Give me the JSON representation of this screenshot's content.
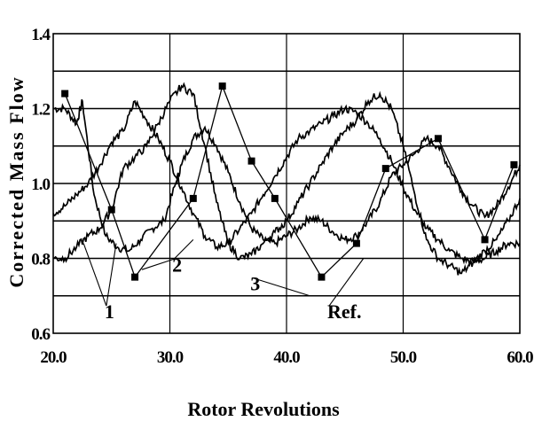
{
  "chart_data": {
    "type": "line",
    "title": "",
    "xlabel": "Rotor Revolutions",
    "ylabel": "Corrected Mass Flow",
    "xlim": [
      20,
      60
    ],
    "ylim": [
      0.6,
      1.4
    ],
    "x_tick_labels": [
      "20.0",
      "30.0",
      "40.0",
      "50.0",
      "60.0"
    ],
    "y_tick_labels": [
      "0.6",
      "0.8",
      "1.0",
      "1.2",
      "1.4"
    ],
    "y_tick_values": [
      0.6,
      0.8,
      1.0,
      1.2,
      1.4
    ],
    "x_tick_values": [
      20,
      30,
      40,
      50,
      60
    ],
    "grid": {
      "horizontal_step": 0.1,
      "vertical_step": 10
    },
    "series": [
      {
        "name": "1",
        "x": [
          20.0,
          21.0,
          22.0,
          22.5,
          23.5,
          24.5,
          25.5,
          26.5,
          27.5,
          28.5,
          29.5,
          30.5,
          31.0,
          32.0,
          33.0,
          34.0,
          35.0,
          36.0,
          37.0,
          38.0,
          39.0,
          40.0,
          41.0,
          42.0,
          43.0,
          44.0,
          45.0,
          46.0,
          47.0,
          48.0,
          49.0,
          50.0,
          51.0,
          52.0,
          53.0,
          54.0,
          55.0,
          56.0,
          57.0,
          58.0,
          59.0,
          60.0
        ],
        "y": [
          1.2,
          1.2,
          1.16,
          1.22,
          0.97,
          0.86,
          0.83,
          0.82,
          0.85,
          0.88,
          0.9,
          1.0,
          1.05,
          1.12,
          1.15,
          1.1,
          1.03,
          0.95,
          0.88,
          0.85,
          0.84,
          0.86,
          0.88,
          0.91,
          0.9,
          0.87,
          0.85,
          0.86,
          0.9,
          0.95,
          1.02,
          1.05,
          1.08,
          1.12,
          1.1,
          1.04,
          0.98,
          0.94,
          0.91,
          0.94,
          0.99,
          1.05
        ]
      },
      {
        "name": "2",
        "x": [
          20.0,
          21.0,
          22.0,
          23.0,
          24.0,
          25.0,
          26.0,
          27.0,
          28.0,
          29.0,
          30.0,
          31.0,
          32.0,
          33.0,
          34.0,
          35.0,
          36.0,
          37.0,
          38.0,
          39.0,
          40.0,
          41.0,
          42.0,
          43.0,
          44.0,
          45.0,
          46.0,
          47.0,
          48.0,
          49.0,
          50.0,
          51.0,
          52.0,
          53.0,
          54.0,
          55.0,
          56.0,
          57.0,
          58.0,
          59.0,
          60.0
        ],
        "y": [
          0.92,
          0.94,
          0.97,
          1.0,
          1.05,
          1.11,
          1.14,
          1.22,
          1.17,
          1.12,
          1.06,
          0.99,
          0.92,
          0.86,
          0.83,
          0.84,
          0.88,
          0.92,
          0.97,
          1.02,
          1.07,
          1.12,
          1.14,
          1.16,
          1.18,
          1.2,
          1.19,
          1.16,
          1.12,
          1.06,
          0.99,
          0.93,
          0.88,
          0.85,
          0.82,
          0.8,
          0.79,
          0.8,
          0.82,
          0.84,
          0.84
        ]
      },
      {
        "name": "3",
        "x": [
          20.0,
          21.0,
          22.0,
          23.0,
          24.0,
          25.0,
          26.0,
          27.0,
          28.0,
          29.0,
          30.0,
          31.0,
          32.0,
          33.0,
          34.0,
          35.0,
          36.0,
          37.0,
          38.0,
          39.0,
          40.0,
          41.0,
          42.0,
          43.0,
          44.0,
          45.0,
          46.0,
          47.0,
          48.0,
          49.0,
          50.0,
          51.0,
          52.0,
          53.0,
          54.0,
          55.0,
          56.0,
          57.0,
          58.0,
          59.0,
          60.0
        ],
        "y": [
          0.8,
          0.8,
          0.83,
          0.86,
          0.88,
          0.93,
          1.04,
          1.07,
          1.1,
          1.16,
          1.22,
          1.26,
          1.24,
          1.1,
          0.95,
          0.84,
          0.8,
          0.81,
          0.84,
          0.87,
          0.9,
          0.95,
          1.0,
          1.05,
          1.1,
          1.14,
          1.17,
          1.22,
          1.24,
          1.2,
          1.1,
          0.97,
          0.85,
          0.8,
          0.78,
          0.76,
          0.79,
          0.82,
          0.85,
          0.9,
          0.96
        ]
      },
      {
        "name": "Ref.",
        "x": [
          21.0,
          25.0,
          27.0,
          32.0,
          34.5,
          37.0,
          39.0,
          43.0,
          46.0,
          48.5,
          53.0,
          57.0,
          59.5
        ],
        "y": [
          1.24,
          0.93,
          0.75,
          0.96,
          1.26,
          1.06,
          0.96,
          0.75,
          0.84,
          1.04,
          1.12,
          0.85,
          1.05
        ]
      }
    ],
    "annotations": [
      {
        "text": "1",
        "label_at": [
          24.4,
          0.64
        ],
        "pointer_to": [
          [
            22.6,
            0.84
          ],
          [
            25.4,
            0.84
          ]
        ]
      },
      {
        "text": "2",
        "label_at": [
          30.2,
          0.765
        ],
        "pointer_to": [
          [
            27.6,
            0.77
          ],
          [
            32.0,
            0.85
          ]
        ]
      },
      {
        "text": "3",
        "label_at": [
          36.9,
          0.715
        ],
        "pointer_to": [
          [
            42.0,
            0.7
          ]
        ]
      },
      {
        "text": "Ref.",
        "label_at": [
          43.5,
          0.64
        ],
        "pointer_to": [
          [
            46.6,
            0.8
          ]
        ]
      }
    ]
  }
}
